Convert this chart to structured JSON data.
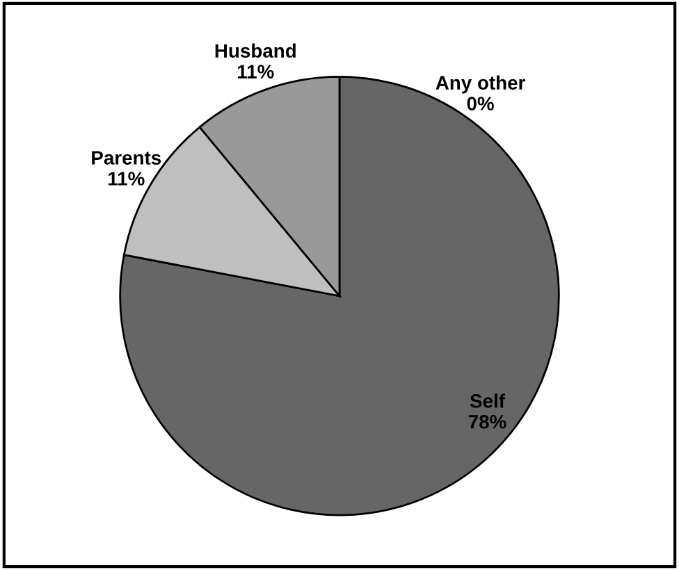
{
  "chart_data": {
    "type": "pie",
    "categories": [
      "Any other",
      "Self",
      "Parents",
      "Husband"
    ],
    "values": [
      0,
      78,
      11,
      11
    ],
    "colors": [
      "#4d4d4d",
      "#666666",
      "#bfbfbf",
      "#999999"
    ],
    "value_labels": [
      "0%",
      "78%",
      "11%",
      "11%"
    ]
  }
}
